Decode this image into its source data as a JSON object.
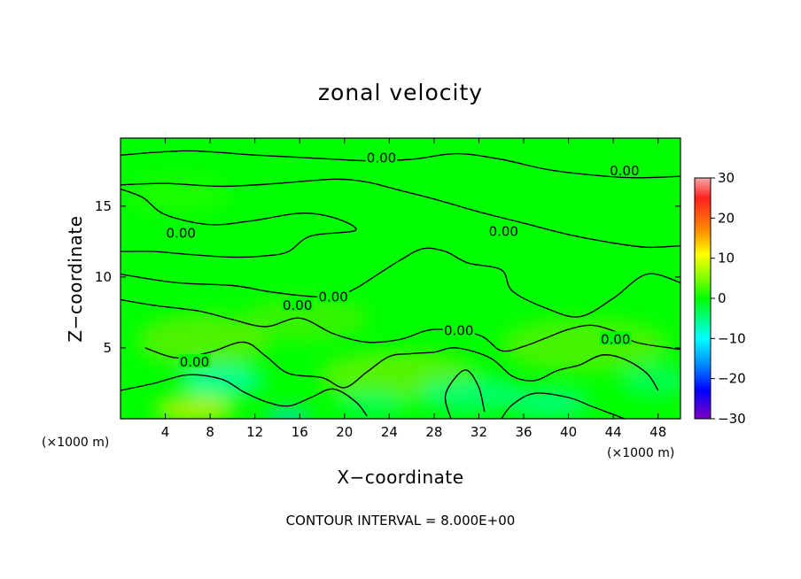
{
  "chart_data": {
    "type": "heatmap",
    "title": "zonal velocity",
    "xlabel": "X−coordinate",
    "ylabel": "Z−coordinate",
    "x_unit": "(×1000 m)",
    "y_unit": "(×1000 m)",
    "xlim": [
      0,
      50
    ],
    "ylim": [
      0,
      19.8
    ],
    "x_ticks": [
      4,
      8,
      12,
      16,
      20,
      24,
      28,
      32,
      36,
      40,
      44,
      48
    ],
    "y_ticks": [
      5,
      10,
      15
    ],
    "colorbar": {
      "range": [
        -30,
        30
      ],
      "ticks": [
        "30",
        "20",
        "10",
        "0",
        "−10",
        "−20",
        "−30"
      ],
      "stops": [
        {
          "v": 30,
          "color": "#f8a8a8"
        },
        {
          "v": 25,
          "color": "#ff2020"
        },
        {
          "v": 17,
          "color": "#ff8a00"
        },
        {
          "v": 11,
          "color": "#ffff00"
        },
        {
          "v": 5,
          "color": "#80ff00"
        },
        {
          "v": 0,
          "color": "#00ff00"
        },
        {
          "v": -5,
          "color": "#00ff80"
        },
        {
          "v": -10,
          "color": "#00ffff"
        },
        {
          "v": -17,
          "color": "#0080ff"
        },
        {
          "v": -23,
          "color": "#0000ff"
        },
        {
          "v": -30,
          "color": "#8000c0"
        }
      ]
    },
    "contour_value_label": "0.00",
    "contour_labels": [
      {
        "x": 23.3,
        "z": 18.4
      },
      {
        "x": 45.0,
        "z": 17.5
      },
      {
        "x": 5.4,
        "z": 13.1
      },
      {
        "x": 34.2,
        "z": 13.2
      },
      {
        "x": 19.0,
        "z": 8.6
      },
      {
        "x": 15.8,
        "z": 8.0
      },
      {
        "x": 30.2,
        "z": 6.2
      },
      {
        "x": 44.2,
        "z": 5.6
      },
      {
        "x": 6.6,
        "z": 4.0
      }
    ],
    "contour_lines": [
      [
        [
          0,
          18.6
        ],
        [
          6,
          18.9
        ],
        [
          12,
          18.6
        ],
        [
          17,
          18.4
        ],
        [
          22,
          18.2
        ],
        [
          26,
          18.3
        ],
        [
          30,
          18.7
        ],
        [
          34,
          18.3
        ],
        [
          38,
          17.6
        ],
        [
          42,
          17.2
        ],
        [
          46,
          17.0
        ],
        [
          50,
          17.1
        ]
      ],
      [
        [
          0,
          16.5
        ],
        [
          4,
          16.6
        ],
        [
          9,
          16.4
        ],
        [
          14,
          16.6
        ],
        [
          19,
          16.9
        ],
        [
          22,
          16.7
        ],
        [
          25,
          16.1
        ],
        [
          28,
          15.5
        ],
        [
          32,
          14.6
        ],
        [
          36,
          13.8
        ],
        [
          40,
          13.0
        ],
        [
          44,
          12.4
        ],
        [
          47,
          12.1
        ],
        [
          50,
          12.2
        ]
      ],
      [
        [
          0,
          16.2
        ],
        [
          2,
          15.6
        ],
        [
          4,
          14.4
        ],
        [
          8,
          13.7
        ],
        [
          12,
          14.0
        ],
        [
          16,
          14.5
        ],
        [
          19,
          14.2
        ],
        [
          21,
          13.3
        ],
        [
          17,
          12.9
        ],
        [
          15,
          11.8
        ],
        [
          13,
          11.5
        ],
        [
          10,
          11.4
        ],
        [
          6,
          11.6
        ],
        [
          3,
          11.8
        ],
        [
          0,
          11.8
        ]
      ],
      [
        [
          0,
          10.2
        ],
        [
          5,
          9.6
        ],
        [
          10,
          9.4
        ],
        [
          13,
          9.0
        ],
        [
          16,
          8.7
        ],
        [
          19,
          8.6
        ],
        [
          21,
          9.2
        ],
        [
          23,
          10.2
        ],
        [
          25,
          11.2
        ],
        [
          27,
          12.0
        ],
        [
          29,
          11.8
        ],
        [
          31,
          11.0
        ],
        [
          34,
          10.5
        ],
        [
          35,
          9.0
        ],
        [
          38,
          7.8
        ],
        [
          41,
          7.2
        ],
        [
          44,
          8.5
        ],
        [
          47,
          10.2
        ],
        [
          50,
          9.6
        ]
      ],
      [
        [
          0,
          8.4
        ],
        [
          3,
          8.0
        ],
        [
          7,
          7.6
        ],
        [
          10,
          7.0
        ],
        [
          13,
          6.5
        ],
        [
          16,
          7.1
        ],
        [
          19,
          6.0
        ],
        [
          22,
          5.4
        ],
        [
          25,
          5.6
        ],
        [
          28,
          6.3
        ],
        [
          32,
          5.9
        ],
        [
          34,
          4.8
        ],
        [
          36,
          5.1
        ],
        [
          38,
          5.7
        ],
        [
          40,
          6.3
        ],
        [
          42,
          6.6
        ],
        [
          44,
          6.2
        ],
        [
          46,
          5.4
        ],
        [
          49,
          5.0
        ],
        [
          50,
          4.9
        ]
      ],
      [
        [
          2.2,
          5.0
        ],
        [
          5,
          4.3
        ],
        [
          8,
          4.7
        ],
        [
          11,
          5.4
        ],
        [
          13,
          4.4
        ],
        [
          15,
          3.2
        ],
        [
          18,
          2.9
        ],
        [
          20,
          2.2
        ],
        [
          22,
          3.3
        ],
        [
          24,
          4.4
        ],
        [
          26,
          4.6
        ],
        [
          28,
          4.7
        ],
        [
          30,
          5.0
        ],
        [
          33,
          4.3
        ],
        [
          35,
          3.0
        ],
        [
          37,
          2.7
        ],
        [
          39,
          3.4
        ],
        [
          41,
          3.8
        ],
        [
          43,
          4.5
        ],
        [
          45,
          4.2
        ],
        [
          47,
          3.2
        ],
        [
          48,
          2.0
        ]
      ],
      [
        [
          0,
          2.0
        ],
        [
          3,
          2.5
        ],
        [
          6,
          3.1
        ],
        [
          9,
          2.8
        ],
        [
          11,
          1.9
        ],
        [
          13,
          1.2
        ],
        [
          15,
          0.9
        ],
        [
          17,
          1.5
        ],
        [
          19,
          2.1
        ],
        [
          21,
          1.2
        ],
        [
          22,
          0.2
        ]
      ],
      [
        [
          29.5,
          0
        ],
        [
          29,
          1.6
        ],
        [
          30,
          3.0
        ],
        [
          31,
          3.4
        ],
        [
          32,
          2.2
        ],
        [
          32.5,
          0.5
        ]
      ],
      [
        [
          34,
          0
        ],
        [
          35,
          1.0
        ],
        [
          37,
          1.8
        ],
        [
          40,
          1.5
        ],
        [
          42,
          0.9
        ],
        [
          44,
          0.3
        ],
        [
          45,
          0
        ]
      ]
    ]
  }
}
